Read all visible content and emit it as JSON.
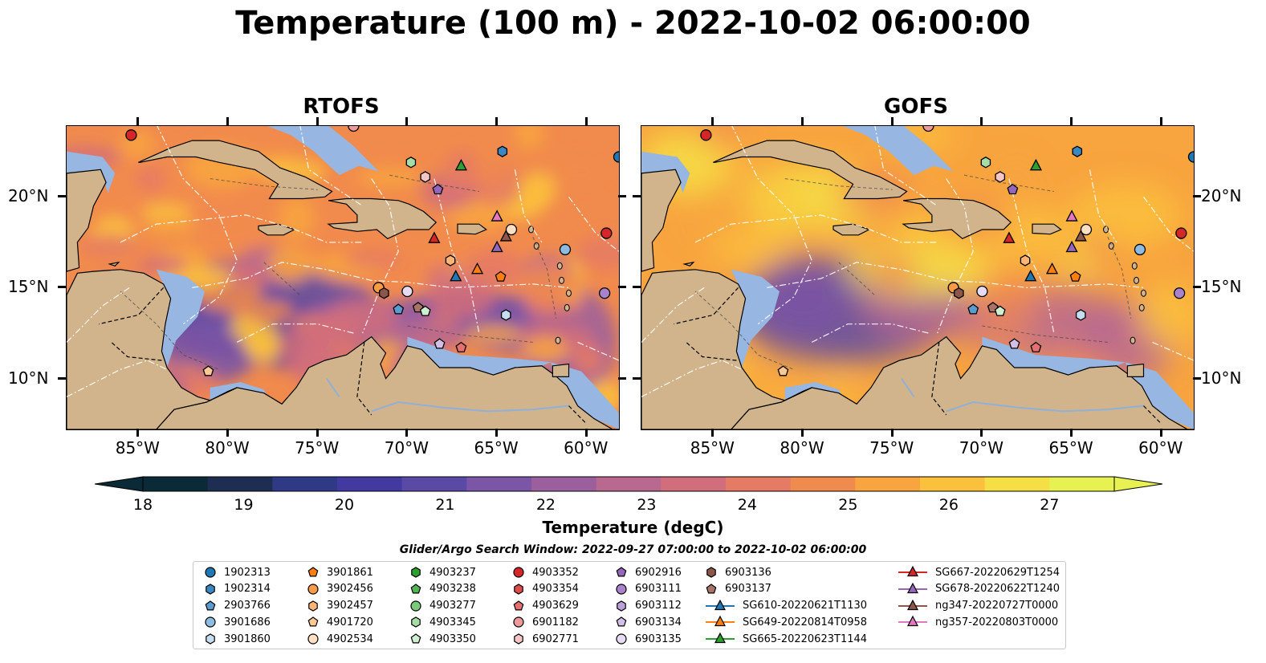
{
  "title": "Temperature (100 m) - 2022-10-02 06:00:00",
  "panels": [
    {
      "title": "RTOFS",
      "variant": "rtofs"
    },
    {
      "title": "GOFS",
      "variant": "gofs"
    }
  ],
  "axes": {
    "lon_range": [
      -89,
      -58.2
    ],
    "lat_range": [
      7.2,
      23.9
    ],
    "x_ticks": [
      "85°W",
      "80°W",
      "75°W",
      "70°W",
      "65°W",
      "60°W"
    ],
    "x_tick_values": [
      -85,
      -80,
      -75,
      -70,
      -65,
      -60
    ],
    "y_ticks": [
      "20°N",
      "15°N",
      "10°N"
    ],
    "y_tick_values": [
      20,
      15,
      10
    ]
  },
  "colorbar": {
    "label": "Temperature (degC)",
    "ticks": [
      "18",
      "19",
      "20",
      "21",
      "22",
      "23",
      "24",
      "25",
      "26",
      "27"
    ],
    "min": 18,
    "max": 27,
    "extend": "both",
    "colors": [
      "#0b2a38",
      "#1e2e52",
      "#2f3a86",
      "#423aa0",
      "#5a4aa6",
      "#7b55a6",
      "#9b5f9e",
      "#b96990",
      "#d26e7b",
      "#e57b64",
      "#f18b4d",
      "#f8a43f",
      "#fbc13d",
      "#f6df45",
      "#e8f152"
    ]
  },
  "colors": {
    "land": "#d1b48c",
    "ocean_shallow": "#97b6e1",
    "deep_land": "#0e2b3a",
    "eez_line": "#ffffff"
  },
  "search_window": "Glider/Argo Search Window: 2022-09-27 07:00:00 to 2022-10-02 06:00:00",
  "legend": {
    "columns": [
      [
        {
          "label": "1902313",
          "marker": "circle",
          "color": "#1f77b4"
        },
        {
          "label": "1902314",
          "marker": "hexagon",
          "color": "#3a87c2"
        },
        {
          "label": "2903766",
          "marker": "pentagon",
          "color": "#5a9bd0"
        },
        {
          "label": "3901686",
          "marker": "circle",
          "color": "#8dbce0"
        },
        {
          "label": "3901860",
          "marker": "hexagon",
          "color": "#c6dcf0"
        }
      ],
      [
        {
          "label": "3901861",
          "marker": "pentagon",
          "color": "#ff7f0e"
        },
        {
          "label": "3902456",
          "marker": "circle",
          "color": "#ff9a45"
        },
        {
          "label": "3902457",
          "marker": "hexagon",
          "color": "#ffb577"
        },
        {
          "label": "4901720",
          "marker": "pentagon",
          "color": "#ffc894"
        },
        {
          "label": "4902534",
          "marker": "circle",
          "color": "#ffe0c2"
        }
      ],
      [
        {
          "label": "4903237",
          "marker": "hexagon",
          "color": "#2ca02c"
        },
        {
          "label": "4903238",
          "marker": "pentagon",
          "color": "#52b552"
        },
        {
          "label": "4903277",
          "marker": "circle",
          "color": "#7cc87c"
        },
        {
          "label": "4903345",
          "marker": "hexagon",
          "color": "#a6dca6"
        },
        {
          "label": "4903350",
          "marker": "pentagon",
          "color": "#d0eed0"
        }
      ],
      [
        {
          "label": "4903352",
          "marker": "circle",
          "color": "#d62728"
        },
        {
          "label": "4903354",
          "marker": "hexagon",
          "color": "#de4b4b"
        },
        {
          "label": "4903629",
          "marker": "pentagon",
          "color": "#e67070"
        },
        {
          "label": "6901182",
          "marker": "circle",
          "color": "#ee9a9a"
        },
        {
          "label": "6902771",
          "marker": "hexagon",
          "color": "#f6c6c6"
        }
      ],
      [
        {
          "label": "6902916",
          "marker": "pentagon",
          "color": "#9467bd"
        },
        {
          "label": "6903111",
          "marker": "circle",
          "color": "#a982cb"
        },
        {
          "label": "6903112",
          "marker": "hexagon",
          "color": "#bea0d8"
        },
        {
          "label": "6903134",
          "marker": "pentagon",
          "color": "#d3bfe6"
        },
        {
          "label": "6903135",
          "marker": "circle",
          "color": "#e6dbf2"
        }
      ],
      [
        {
          "label": "6903136",
          "marker": "hexagon",
          "color": "#8c564b"
        },
        {
          "label": "6903137",
          "marker": "pentagon",
          "color": "#a97466"
        },
        {
          "label": "SG610-20220621T1130",
          "marker": "triangle-line",
          "color": "#1f77b4"
        },
        {
          "label": "SG649-20220814T0958",
          "marker": "triangle-line",
          "color": "#ff7f0e"
        },
        {
          "label": "SG665-20220623T1144",
          "marker": "triangle-line",
          "color": "#2ca02c"
        }
      ],
      [
        {
          "label": "SG667-20220629T1254",
          "marker": "triangle-line",
          "color": "#d62728"
        },
        {
          "label": "SG678-20220622T1240",
          "marker": "triangle-line",
          "color": "#9467bd"
        },
        {
          "label": "ng347-20220727T0000",
          "marker": "triangle-line",
          "color": "#8c564b"
        },
        {
          "label": "ng357-20220803T0000",
          "marker": "triangle-line",
          "color": "#e377c2"
        }
      ]
    ]
  },
  "observations": [
    {
      "id": "4903352",
      "lon": -85.4,
      "lat": 23.4
    },
    {
      "id": "6901182",
      "lon": -73.0,
      "lat": 23.9
    },
    {
      "id": "1902314",
      "lon": -64.7,
      "lat": 22.5
    },
    {
      "id": "1902313",
      "lon": -58.2,
      "lat": 22.2
    },
    {
      "id": "4903345",
      "lon": -69.8,
      "lat": 21.9
    },
    {
      "id": "SG665-20220623T1144",
      "lon": -67.0,
      "lat": 21.7
    },
    {
      "id": "6902771",
      "lon": -69.0,
      "lat": 21.1
    },
    {
      "id": "6902916",
      "lon": -68.3,
      "lat": 20.4
    },
    {
      "id": "ng357-20220803T0000",
      "lon": -65.0,
      "lat": 18.9
    },
    {
      "id": "4902534",
      "lon": -64.2,
      "lat": 18.2
    },
    {
      "id": "ng347-20220727T0000",
      "lon": -64.5,
      "lat": 17.8
    },
    {
      "id": "SG667-20220629T1254",
      "lon": -68.5,
      "lat": 17.7
    },
    {
      "id": "SG678-20220622T1240",
      "lon": -65.0,
      "lat": 17.2
    },
    {
      "id": "3901686",
      "lon": -61.2,
      "lat": 17.1
    },
    {
      "id": "4903352",
      "lon": -58.9,
      "lat": 18.0
    },
    {
      "id": "3902457",
      "lon": -67.6,
      "lat": 16.5
    },
    {
      "id": "SG649-20220814T0958",
      "lon": -66.1,
      "lat": 16.0
    },
    {
      "id": "SG610-20220621T1130",
      "lon": -67.3,
      "lat": 15.6
    },
    {
      "id": "3901861",
      "lon": -64.8,
      "lat": 15.6
    },
    {
      "id": "3902456",
      "lon": -71.6,
      "lat": 15.0
    },
    {
      "id": "6903136",
      "lon": -71.3,
      "lat": 14.7
    },
    {
      "id": "6903135",
      "lon": -70.0,
      "lat": 14.8
    },
    {
      "id": "6903111",
      "lon": -59.0,
      "lat": 14.7
    },
    {
      "id": "2903766",
      "lon": -70.5,
      "lat": 13.8
    },
    {
      "id": "6903137",
      "lon": -69.4,
      "lat": 13.9
    },
    {
      "id": "4903350",
      "lon": -69.0,
      "lat": 13.7
    },
    {
      "id": "3901860",
      "lon": -64.5,
      "lat": 13.5
    },
    {
      "id": "6903134",
      "lon": -68.2,
      "lat": 11.9
    },
    {
      "id": "4903629",
      "lon": -67.0,
      "lat": 11.7
    },
    {
      "id": "4901720",
      "lon": -81.1,
      "lat": 10.4
    }
  ]
}
